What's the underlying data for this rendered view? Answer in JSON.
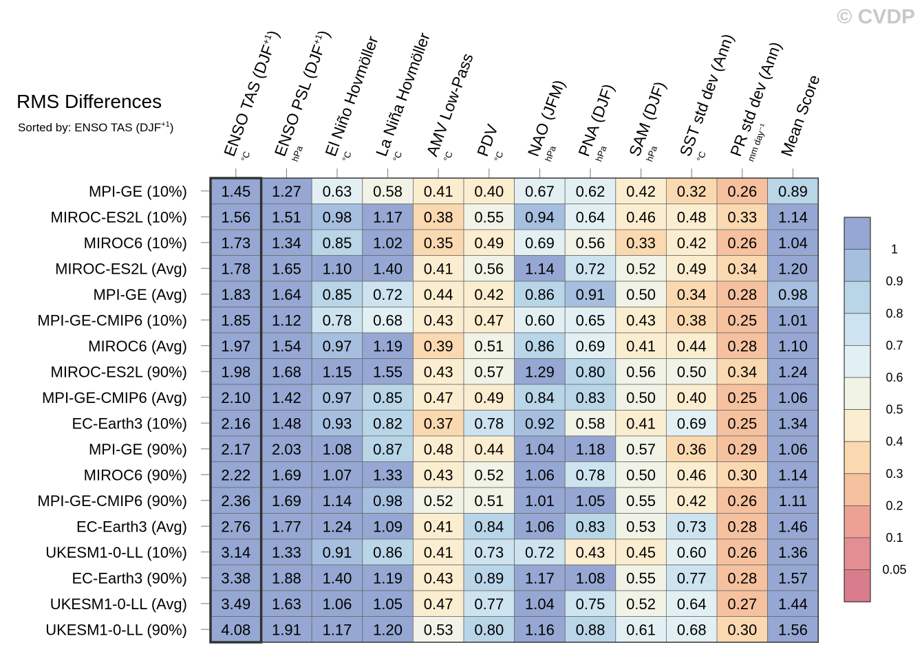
{
  "watermark": "© CVDP",
  "chart_data": {
    "type": "heatmap",
    "title": "RMS Differences",
    "subtitle": {
      "text": "Sorted by: ENSO TAS (DJF",
      "sup": "+1",
      "suffix": ")"
    },
    "columns": [
      {
        "label": "ENSO TAS (DJF",
        "sup": "+1",
        "suffix": ")",
        "unit": "°C"
      },
      {
        "label": "ENSO PSL (DJF",
        "sup": "+1",
        "suffix": ")",
        "unit": "hPa"
      },
      {
        "label": "El Niño Hovmöller",
        "sup": "",
        "suffix": "",
        "unit": "°C"
      },
      {
        "label": "La Niña Hovmöller",
        "sup": "",
        "suffix": "",
        "unit": "°C"
      },
      {
        "label": "AMV Low-Pass",
        "sup": "",
        "suffix": "",
        "unit": "°C"
      },
      {
        "label": "PDV",
        "sup": "",
        "suffix": "",
        "unit": "°C"
      },
      {
        "label": "NAO (JFM)",
        "sup": "",
        "suffix": "",
        "unit": "hPa"
      },
      {
        "label": "PNA (DJF)",
        "sup": "",
        "suffix": "",
        "unit": "hPa"
      },
      {
        "label": "SAM (DJF)",
        "sup": "",
        "suffix": "",
        "unit": "hPa"
      },
      {
        "label": "SST std dev (Ann)",
        "sup": "",
        "suffix": "",
        "unit": "°C"
      },
      {
        "label": "PR std dev (Ann)",
        "sup": "",
        "suffix": "",
        "unit": "mm day⁻¹"
      },
      {
        "label": "Mean Score",
        "sup": "",
        "suffix": "",
        "unit": ""
      }
    ],
    "rows": [
      "MPI-GE (10%)",
      "MIROC-ES2L (10%)",
      "MIROC6 (10%)",
      "MIROC-ES2L (Avg)",
      "MPI-GE (Avg)",
      "MPI-GE-CMIP6 (10%)",
      "MIROC6 (Avg)",
      "MIROC-ES2L (90%)",
      "MPI-GE-CMIP6 (Avg)",
      "EC-Earth3 (10%)",
      "MPI-GE (90%)",
      "MIROC6 (90%)",
      "MPI-GE-CMIP6 (90%)",
      "EC-Earth3 (Avg)",
      "UKESM1-0-LL (10%)",
      "EC-Earth3 (90%)",
      "UKESM1-0-LL (Avg)",
      "UKESM1-0-LL (90%)"
    ],
    "values": [
      [
        "1.45",
        "1.27",
        "0.63",
        "0.58",
        "0.41",
        "0.40",
        "0.67",
        "0.62",
        "0.42",
        "0.32",
        "0.26",
        "0.89"
      ],
      [
        "1.56",
        "1.51",
        "0.98",
        "1.17",
        "0.38",
        "0.55",
        "0.94",
        "0.64",
        "0.46",
        "0.48",
        "0.33",
        "1.14"
      ],
      [
        "1.73",
        "1.34",
        "0.85",
        "1.02",
        "0.35",
        "0.49",
        "0.69",
        "0.56",
        "0.33",
        "0.42",
        "0.26",
        "1.04"
      ],
      [
        "1.78",
        "1.65",
        "1.10",
        "1.40",
        "0.41",
        "0.56",
        "1.14",
        "0.72",
        "0.52",
        "0.49",
        "0.34",
        "1.20"
      ],
      [
        "1.83",
        "1.64",
        "0.85",
        "0.72",
        "0.44",
        "0.42",
        "0.86",
        "0.91",
        "0.50",
        "0.34",
        "0.28",
        "0.98"
      ],
      [
        "1.85",
        "1.12",
        "0.78",
        "0.68",
        "0.43",
        "0.47",
        "0.60",
        "0.65",
        "0.43",
        "0.38",
        "0.25",
        "1.01"
      ],
      [
        "1.97",
        "1.54",
        "0.97",
        "1.19",
        "0.39",
        "0.51",
        "0.86",
        "0.69",
        "0.41",
        "0.44",
        "0.28",
        "1.10"
      ],
      [
        "1.98",
        "1.68",
        "1.15",
        "1.55",
        "0.43",
        "0.57",
        "1.29",
        "0.80",
        "0.56",
        "0.50",
        "0.34",
        "1.24"
      ],
      [
        "2.10",
        "1.42",
        "0.97",
        "0.85",
        "0.47",
        "0.49",
        "0.84",
        "0.83",
        "0.50",
        "0.40",
        "0.25",
        "1.06"
      ],
      [
        "2.16",
        "1.48",
        "0.93",
        "0.82",
        "0.37",
        "0.78",
        "0.92",
        "0.58",
        "0.41",
        "0.69",
        "0.25",
        "1.34"
      ],
      [
        "2.17",
        "2.03",
        "1.08",
        "0.87",
        "0.48",
        "0.44",
        "1.04",
        "1.18",
        "0.57",
        "0.36",
        "0.29",
        "1.06"
      ],
      [
        "2.22",
        "1.69",
        "1.07",
        "1.33",
        "0.43",
        "0.52",
        "1.06",
        "0.78",
        "0.50",
        "0.46",
        "0.30",
        "1.14"
      ],
      [
        "2.36",
        "1.69",
        "1.14",
        "0.98",
        "0.52",
        "0.51",
        "1.01",
        "1.05",
        "0.55",
        "0.42",
        "0.26",
        "1.11"
      ],
      [
        "2.76",
        "1.77",
        "1.24",
        "1.09",
        "0.41",
        "0.84",
        "1.06",
        "0.83",
        "0.53",
        "0.73",
        "0.28",
        "1.46"
      ],
      [
        "3.14",
        "1.33",
        "0.91",
        "0.86",
        "0.41",
        "0.73",
        "0.72",
        "0.43",
        "0.45",
        "0.60",
        "0.26",
        "1.36"
      ],
      [
        "3.38",
        "1.88",
        "1.40",
        "1.19",
        "0.43",
        "0.89",
        "1.17",
        "1.08",
        "0.55",
        "0.77",
        "0.28",
        "1.57"
      ],
      [
        "3.49",
        "1.63",
        "1.06",
        "1.05",
        "0.47",
        "0.77",
        "1.04",
        "0.75",
        "0.52",
        "0.64",
        "0.27",
        "1.44"
      ],
      [
        "4.08",
        "1.91",
        "1.17",
        "1.20",
        "0.53",
        "0.80",
        "1.16",
        "0.88",
        "0.61",
        "0.68",
        "0.30",
        "1.56"
      ]
    ],
    "highlighted_column": 0,
    "colorbar": {
      "labels": [
        "1",
        "0.9",
        "0.8",
        "0.7",
        "0.6",
        "0.5",
        "0.4",
        "0.3",
        "0.2",
        "0.1",
        "0.05"
      ],
      "bins": [
        {
          "min": 1.0,
          "max": 99,
          "color": "#95a7d2"
        },
        {
          "min": 0.9,
          "max": 1.0,
          "color": "#a6bfdf"
        },
        {
          "min": 0.8,
          "max": 0.9,
          "color": "#b9d5e8"
        },
        {
          "min": 0.7,
          "max": 0.8,
          "color": "#cde3ef"
        },
        {
          "min": 0.6,
          "max": 0.7,
          "color": "#e3f0f3"
        },
        {
          "min": 0.5,
          "max": 0.6,
          "color": "#f2f3e7"
        },
        {
          "min": 0.4,
          "max": 0.5,
          "color": "#fbedcf"
        },
        {
          "min": 0.3,
          "max": 0.4,
          "color": "#fbd9b0"
        },
        {
          "min": 0.2,
          "max": 0.3,
          "color": "#f6c19e"
        },
        {
          "min": 0.1,
          "max": 0.2,
          "color": "#eda195"
        },
        {
          "min": 0.05,
          "max": 0.1,
          "color": "#e38e92"
        },
        {
          "min": 0.0,
          "max": 0.05,
          "color": "#d97d8c"
        }
      ]
    }
  }
}
